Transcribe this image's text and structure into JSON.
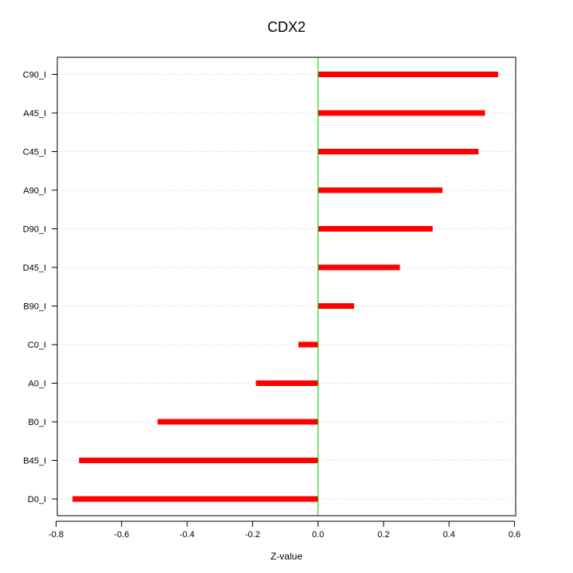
{
  "chart_data": {
    "type": "bar",
    "orientation": "horizontal",
    "title": "CDX2",
    "xlabel": "Z-value",
    "ylabel": "",
    "xlim": [
      -0.8,
      0.6
    ],
    "xticks": [
      "-0.8",
      "-0.6",
      "-0.4",
      "-0.2",
      "0.0",
      "0.2",
      "0.4",
      "0.6"
    ],
    "grid": "horizontal dotted",
    "reference_line": {
      "x": 0,
      "color": "#00cc00"
    },
    "bar_color": "#ff0000",
    "categories": [
      "C90_I",
      "A45_I",
      "C45_I",
      "A90_I",
      "D90_I",
      "D45_I",
      "B90_I",
      "C0_I",
      "A0_I",
      "B0_I",
      "B45_I",
      "D0_I"
    ],
    "values": [
      0.55,
      0.51,
      0.49,
      0.38,
      0.35,
      0.25,
      0.11,
      -0.06,
      -0.19,
      -0.49,
      -0.73,
      -0.75
    ]
  }
}
